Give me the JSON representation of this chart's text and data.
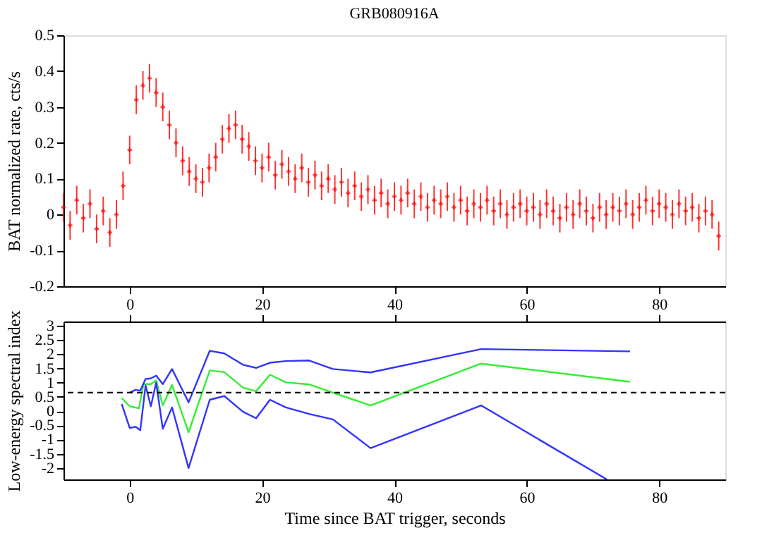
{
  "chart_data": [
    {
      "type": "scatter",
      "title": "GRB080916A",
      "ylabel": "BAT normalized rate, cts/s",
      "color": "#ff0000",
      "marker": "cross",
      "grid": false,
      "legend": false,
      "tick_labels": "y",
      "xlim": [
        -10,
        90
      ],
      "xticks": [
        0,
        20,
        40,
        60,
        80
      ],
      "ylim": [
        -0.2,
        0.5
      ],
      "yticks": [
        -0.2,
        -0.1,
        0,
        0.1,
        0.2,
        0.3,
        0.4,
        0.5
      ],
      "x": [
        -10,
        -9,
        -8,
        -7,
        -6,
        -5,
        -4,
        -3,
        -2,
        -1,
        0,
        1,
        2,
        3,
        4,
        5,
        6,
        7,
        8,
        9,
        10,
        11,
        12,
        13,
        14,
        15,
        16,
        17,
        18,
        19,
        20,
        21,
        22,
        23,
        24,
        25,
        26,
        27,
        28,
        29,
        30,
        31,
        32,
        33,
        34,
        35,
        36,
        37,
        38,
        39,
        40,
        41,
        42,
        43,
        44,
        45,
        46,
        47,
        48,
        49,
        50,
        51,
        52,
        53,
        54,
        55,
        56,
        57,
        58,
        59,
        60,
        61,
        62,
        63,
        64,
        65,
        66,
        67,
        68,
        69,
        70,
        71,
        72,
        73,
        74,
        75,
        76,
        77,
        78,
        79,
        80,
        81,
        82,
        83,
        84,
        85,
        86,
        87,
        88,
        89
      ],
      "values": [
        0.02,
        -0.03,
        0.04,
        -0.01,
        0.03,
        -0.04,
        0.01,
        -0.05,
        0.0,
        0.08,
        0.18,
        0.32,
        0.36,
        0.38,
        0.34,
        0.3,
        0.25,
        0.2,
        0.15,
        0.12,
        0.1,
        0.09,
        0.13,
        0.16,
        0.21,
        0.24,
        0.25,
        0.21,
        0.19,
        0.15,
        0.13,
        0.16,
        0.11,
        0.14,
        0.12,
        0.1,
        0.13,
        0.09,
        0.11,
        0.08,
        0.1,
        0.07,
        0.09,
        0.06,
        0.08,
        0.05,
        0.07,
        0.04,
        0.06,
        0.03,
        0.05,
        0.04,
        0.06,
        0.03,
        0.05,
        0.02,
        0.04,
        0.03,
        0.05,
        0.02,
        0.04,
        0.01,
        0.03,
        0.02,
        0.04,
        0.01,
        0.03,
        0.0,
        0.02,
        0.03,
        0.01,
        0.02,
        0.0,
        0.03,
        0.01,
        -0.01,
        0.02,
        0.0,
        0.03,
        0.01,
        -0.01,
        0.02,
        0.0,
        0.02,
        0.01,
        0.03,
        0.0,
        0.02,
        0.04,
        0.01,
        0.03,
        0.02,
        0.0,
        0.03,
        0.01,
        0.02,
        -0.01,
        0.01,
        0.0,
        -0.06
      ],
      "errors": [
        0.04,
        0.04,
        0.04,
        0.04,
        0.04,
        0.04,
        0.04,
        0.04,
        0.04,
        0.04,
        0.04,
        0.04,
        0.04,
        0.04,
        0.04,
        0.04,
        0.04,
        0.04,
        0.04,
        0.04,
        0.04,
        0.04,
        0.04,
        0.04,
        0.04,
        0.04,
        0.04,
        0.04,
        0.04,
        0.04,
        0.04,
        0.04,
        0.04,
        0.04,
        0.04,
        0.04,
        0.04,
        0.04,
        0.04,
        0.04,
        0.04,
        0.04,
        0.04,
        0.04,
        0.04,
        0.04,
        0.04,
        0.04,
        0.04,
        0.04,
        0.04,
        0.04,
        0.04,
        0.04,
        0.04,
        0.04,
        0.04,
        0.04,
        0.04,
        0.04,
        0.04,
        0.04,
        0.04,
        0.04,
        0.04,
        0.04,
        0.04,
        0.04,
        0.04,
        0.04,
        0.04,
        0.04,
        0.04,
        0.04,
        0.04,
        0.04,
        0.04,
        0.04,
        0.04,
        0.04,
        0.04,
        0.04,
        0.04,
        0.04,
        0.04,
        0.04,
        0.04,
        0.04,
        0.04,
        0.04,
        0.04,
        0.04,
        0.04,
        0.04,
        0.04,
        0.04,
        0.04,
        0.04,
        0.04,
        0.04
      ]
    },
    {
      "type": "line",
      "xlabel": "Time since BAT trigger, seconds",
      "ylabel": "Low-energy spectral index",
      "grid": false,
      "legend": false,
      "line_style": "solid",
      "marker": "none",
      "xlim": [
        -10,
        90
      ],
      "xticks": [
        0,
        20,
        40,
        60,
        80
      ],
      "x2lim": [
        -10,
        90
      ],
      "x2ticks": [
        0,
        20,
        40,
        60,
        80
      ],
      "ylim": [
        -2.4,
        3.15
      ],
      "yticks": [
        -2,
        -1.5,
        -1,
        -0.5,
        0,
        0.5,
        1,
        1.5,
        2,
        2.5,
        3
      ],
      "ref_lines": [
        {
          "axis": "y",
          "value": 0.65,
          "color": "#000000",
          "line_style": "dashed"
        }
      ],
      "series": [
        {
          "color": "#33ee33",
          "x": [
            -1.2,
            0,
            1.4,
            2.1,
            3.2,
            4,
            5,
            6.4,
            8.9,
            12.1,
            14.3,
            17.1,
            19.1,
            21.2,
            23.6,
            27.1,
            30.7,
            36.4,
            53.1,
            75.6
          ],
          "values": [
            0.46,
            0.17,
            0.1,
            0.95,
            0.95,
            1.08,
            0.2,
            0.92,
            -0.74,
            1.43,
            1.37,
            0.83,
            0.7,
            1.28,
            1.01,
            0.94,
            0.65,
            0.2,
            1.67,
            1.03
          ]
        },
        {
          "color": "#3333ff",
          "x": [
            0,
            0.9,
            1.6,
            2.4,
            3.2,
            4,
            5,
            6.4,
            8.9,
            12.1,
            14.3,
            17.1,
            19.1,
            21.2,
            23.6,
            27.1,
            30.7,
            36.4,
            53.1,
            75.6
          ],
          "values": [
            0.65,
            0.75,
            0.72,
            1.13,
            1.15,
            1.25,
            0.95,
            1.48,
            0.31,
            2.12,
            2.03,
            1.63,
            1.52,
            1.7,
            1.76,
            1.78,
            1.48,
            1.36,
            2.18,
            2.1
          ]
        },
        {
          "color": "#3333ff",
          "x": [
            -1.2,
            0,
            0.9,
            1.6,
            2.4,
            3.2,
            4,
            5,
            6.4,
            8.9,
            12.1,
            14.3,
            17.1,
            19.1,
            21.2,
            23.6,
            27.1,
            30.7,
            36.4,
            53.1,
            72.1
          ],
          "values": [
            0.25,
            -0.59,
            -0.55,
            -0.67,
            0.9,
            0.17,
            1.0,
            -0.62,
            0.13,
            -2.0,
            0.4,
            0.53,
            -0.02,
            -0.25,
            0.4,
            0.13,
            -0.1,
            -0.29,
            -1.3,
            0.2,
            -2.4
          ]
        }
      ]
    }
  ]
}
